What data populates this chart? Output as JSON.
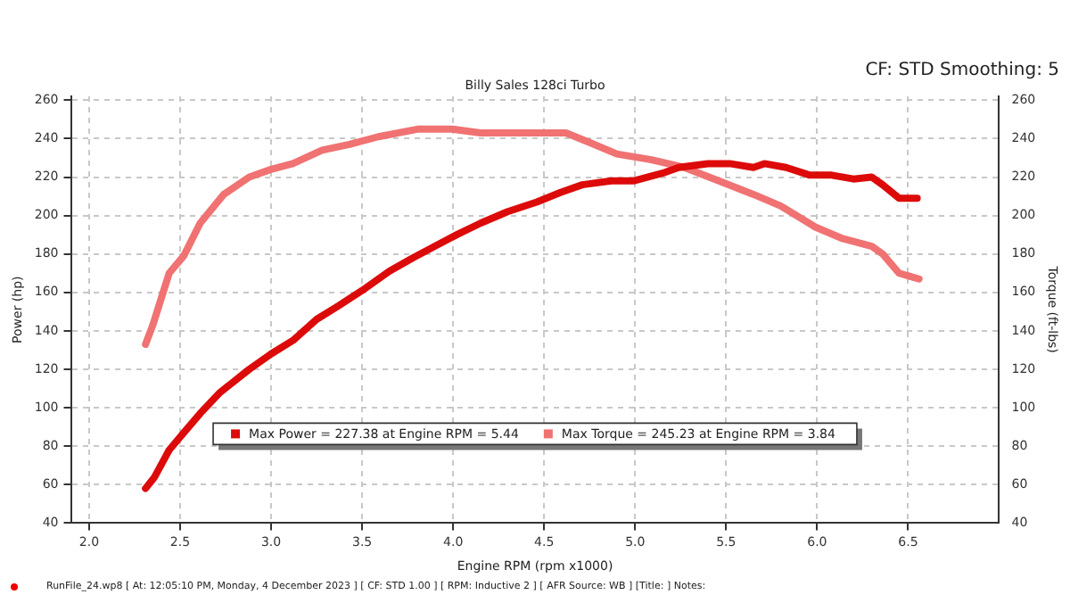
{
  "chart_data": {
    "type": "line",
    "subtitle": "Billy Sales  128ci Turbo",
    "xlabel": "Engine RPM (rpm x1000)",
    "ylabel": "Power (hp)",
    "y2label": "Torque (ft-lbs)",
    "annotations": [
      "CF: STD Smoothing: 5",
      "RunFile_24.wp8 [ At: 12:05:10 PM, Monday, 4 December 2023 ] [ CF: STD 1.00 ] [ RPM: Inductive 2 ] [ AFR Source: WB ] [Title: ]  Notes:"
    ],
    "xlim": [
      1.9,
      7.0
    ],
    "xticks": [
      {
        "value": 2,
        "label": "2.0"
      },
      2.5,
      {
        "value": 3,
        "label": "3.0"
      },
      3.5,
      {
        "value": 4,
        "label": "4.0"
      },
      4.5,
      {
        "value": 5,
        "label": "5.0"
      },
      5.5,
      {
        "value": 6,
        "label": "6.0"
      },
      6.5
    ],
    "ylim": [
      40,
      262
    ],
    "yticks": [
      40,
      60,
      80,
      100,
      120,
      140,
      160,
      180,
      200,
      220,
      240,
      260
    ],
    "y2lim": [
      40,
      262
    ],
    "y2ticks": [
      40,
      60,
      80,
      100,
      120,
      140,
      160,
      180,
      200,
      220,
      240,
      260
    ],
    "grid": true,
    "legend": "bottom",
    "marker": "none",
    "line_style": "solid",
    "series": [
      {
        "name": "Max Power = 227.38 at Engine RPM = 5.44",
        "color": "#dd0a0a",
        "x": [
          2.31,
          2.36,
          2.44,
          2.52,
          2.61,
          2.72,
          2.88,
          3.0,
          3.12,
          3.25,
          3.37,
          3.5,
          3.65,
          3.78,
          3.9,
          4.02,
          4.15,
          4.3,
          4.46,
          4.59,
          4.71,
          4.87,
          4.99,
          5.15,
          5.24,
          5.4,
          5.52,
          5.65,
          5.71,
          5.83,
          5.96,
          6.08,
          6.2,
          6.3,
          6.36,
          6.45,
          6.55
        ],
        "values": [
          58,
          64,
          78,
          87,
          97,
          108,
          120,
          128,
          135,
          146,
          153,
          161,
          171,
          178,
          184,
          190,
          196,
          202,
          207,
          212,
          216,
          218,
          218,
          222,
          225,
          227,
          227,
          225,
          227,
          225,
          221,
          221,
          219,
          220,
          216,
          209,
          209
        ]
      },
      {
        "name": "Max Torque = 245.23 at Engine RPM = 3.84",
        "color": "#f07272",
        "axis": "y2",
        "x": [
          2.31,
          2.35,
          2.44,
          2.52,
          2.61,
          2.74,
          2.88,
          3.0,
          3.12,
          3.28,
          3.43,
          3.59,
          3.81,
          3.99,
          4.15,
          4.46,
          4.62,
          4.75,
          4.9,
          5.09,
          5.27,
          5.46,
          5.65,
          5.8,
          5.99,
          6.14,
          6.3,
          6.36,
          6.45,
          6.56
        ],
        "values": [
          133,
          143,
          170,
          179,
          196,
          211,
          220,
          224,
          227,
          234,
          237,
          241,
          245,
          245,
          243,
          243,
          243,
          238,
          232,
          229,
          225,
          218,
          211,
          205,
          194,
          188,
          184,
          180,
          170,
          167
        ]
      }
    ]
  }
}
